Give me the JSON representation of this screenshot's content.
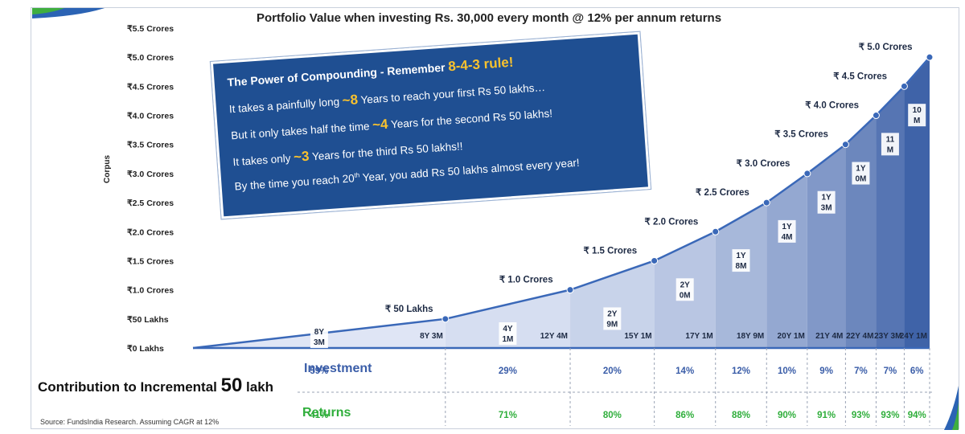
{
  "chart_data": {
    "type": "area",
    "title": "Portfolio Value when investing Rs. 30,000 every month @ 12% per annum returns",
    "ylabel": "Corpus",
    "ylim": [
      0,
      5.5
    ],
    "y_ticks": [
      0,
      0.5,
      1.0,
      1.5,
      2.0,
      2.5,
      3.0,
      3.5,
      4.0,
      4.5,
      5.0,
      5.5
    ],
    "y_tick_labels": [
      "₹0 Lakhs",
      "₹50 Lakhs",
      "₹1.0 Crores",
      "₹1.5 Crores",
      "₹2.0 Crores",
      "₹2.5 Crores",
      "₹3.0 Crores",
      "₹3.5 Crores",
      "₹4.0 Crores",
      "₹4.5 Crores",
      "₹5.0 Crores",
      "₹5.5 Crores"
    ],
    "x_unit": "years",
    "xlim": [
      0,
      24.08
    ],
    "milestones": [
      {
        "time": 8.25,
        "time_label": "8Y 3M",
        "corpus": 0.5,
        "corpus_label": "₹ 50 Lakhs",
        "gap": [
          "8Y",
          "3M"
        ],
        "investment": "59%",
        "returns": "41%"
      },
      {
        "time": 12.33,
        "time_label": "12Y 4M",
        "corpus": 1.0,
        "corpus_label": "₹ 1.0 Crores",
        "gap": [
          "4Y",
          "1M"
        ],
        "investment": "29%",
        "returns": "71%"
      },
      {
        "time": 15.08,
        "time_label": "15Y 1M",
        "corpus": 1.5,
        "corpus_label": "₹ 1.5 Crores",
        "gap": [
          "2Y",
          "9M"
        ],
        "investment": "20%",
        "returns": "80%"
      },
      {
        "time": 17.08,
        "time_label": "17Y 1M",
        "corpus": 2.0,
        "corpus_label": "₹ 2.0 Crores",
        "gap": [
          "2Y",
          "0M"
        ],
        "investment": "14%",
        "returns": "86%"
      },
      {
        "time": 18.75,
        "time_label": "18Y 9M",
        "corpus": 2.5,
        "corpus_label": "₹ 2.5 Crores",
        "gap": [
          "1Y",
          "8M"
        ],
        "investment": "12%",
        "returns": "88%"
      },
      {
        "time": 20.08,
        "time_label": "20Y 1M",
        "corpus": 3.0,
        "corpus_label": "₹ 3.0 Crores",
        "gap": [
          "1Y",
          "4M"
        ],
        "investment": "10%",
        "returns": "90%"
      },
      {
        "time": 21.33,
        "time_label": "21Y 4M",
        "corpus": 3.5,
        "corpus_label": "₹ 3.5 Crores",
        "gap": [
          "1Y",
          "3M"
        ],
        "investment": "9%",
        "returns": "91%"
      },
      {
        "time": 22.33,
        "time_label": "22Y 4M",
        "corpus": 4.0,
        "corpus_label": "₹ 4.0 Crores",
        "gap": [
          "1Y",
          "0M"
        ],
        "investment": "7%",
        "returns": "93%"
      },
      {
        "time": 23.25,
        "time_label": "23Y 3M",
        "corpus": 4.5,
        "corpus_label": "₹ 4.5 Crores",
        "gap": [
          "11",
          "M"
        ],
        "investment": "7%",
        "returns": "93%"
      },
      {
        "time": 24.08,
        "time_label": "24Y 1M",
        "corpus": 5.0,
        "corpus_label": "₹ 5.0 Crores",
        "gap": [
          "10",
          "M"
        ],
        "investment": "6%",
        "returns": "94%"
      }
    ],
    "series_colors": {
      "line": "#3a68b8",
      "area_light": "#dfe5f5",
      "area_dark": "#3f63a8",
      "investment": "#3a5da8",
      "returns": "#2fae3b"
    }
  },
  "callout": {
    "head_text": "The Power of Compounding - Remember ",
    "head_hl": "8-4-3 rule!",
    "line1_a": "It takes a painfully long ",
    "line1_hl": "~8",
    "line1_b": " Years to reach your first Rs 50 lakhs…",
    "line2_a": "But it only takes half the time ",
    "line2_hl": "~4",
    "line2_b": " Years for the second Rs 50 lakhs!",
    "line3_a": "It takes only ",
    "line3_hl": "~3",
    "line3_b": " Years for the third Rs 50 lakhs!!",
    "line4_a": "By the time you reach 20",
    "line4_sup": "th",
    "line4_b": " Year, you add Rs 50 lakhs almost every year!"
  },
  "contribution": {
    "text": "Contribution to Incremental ",
    "big": "50",
    "unit": " lakh"
  },
  "investment_label": "Investment",
  "returns_label": "Returns",
  "source": "Source: FundsIndia Research. Assuming CAGR at 12%"
}
